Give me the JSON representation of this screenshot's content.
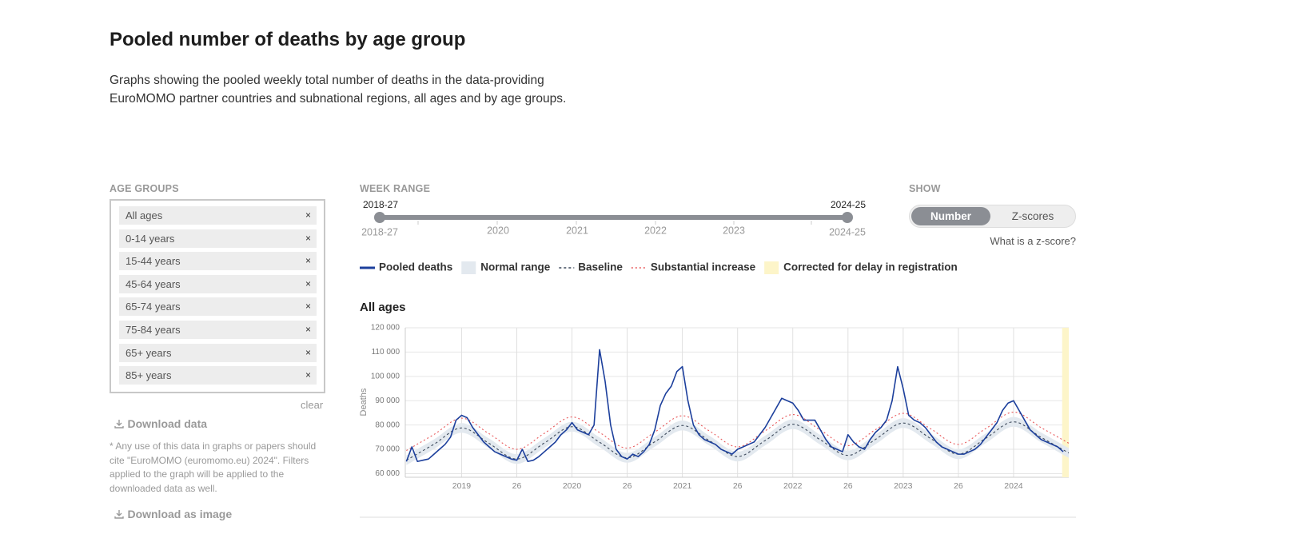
{
  "header": {
    "title": "Pooled number of deaths by age group",
    "description": "Graphs showing the pooled weekly total number of deaths in the data-providing EuroMOMO partner countries and subnational regions, all ages and by age groups."
  },
  "age_groups": {
    "label": "AGE GROUPS",
    "items": [
      "All ages",
      "0-14 years",
      "15-44 years",
      "45-64 years",
      "65-74 years",
      "75-84 years",
      "65+ years",
      "85+ years"
    ],
    "remove_icon": "×",
    "clear": "clear"
  },
  "downloads": {
    "data": "Download data",
    "note": "* Any use of this data in graphs or papers should cite \"EuroMOMO (euromomo.eu) 2024\". Filters applied to the graph will be applied to the downloaded data as well.",
    "image": "Download as image"
  },
  "week_range": {
    "label": "WEEK RANGE",
    "start": "2018-27",
    "end": "2024-25",
    "ticks": [
      "2020",
      "2021",
      "2022",
      "2023"
    ]
  },
  "show": {
    "label": "SHOW",
    "options": [
      "Number",
      "Z-scores"
    ],
    "help": "What is a z-score?"
  },
  "chart_data": {
    "type": "line",
    "title": "All ages",
    "ylabel": "Deaths",
    "grid": true,
    "xlim": [
      2018.49,
      2024.5
    ],
    "ylim": [
      58500,
      120000
    ],
    "xticks": [
      2019,
      {
        "value": 2019.5,
        "label": "26"
      },
      2020,
      {
        "value": 2020.5,
        "label": "26"
      },
      2021,
      {
        "value": 2021.5,
        "label": "26"
      },
      2022,
      {
        "value": 2022.5,
        "label": "26"
      },
      2023,
      {
        "value": 2023.5,
        "label": "26"
      },
      2024
    ],
    "yticks": [
      {
        "value": 60000,
        "label": "60 000"
      },
      {
        "value": 70000,
        "label": "70 000"
      },
      {
        "value": 80000,
        "label": "80 000"
      },
      {
        "value": 90000,
        "label": "90 000"
      },
      {
        "value": 100000,
        "label": "100 000"
      },
      {
        "value": 110000,
        "label": "110 000"
      },
      {
        "value": 120000,
        "label": "120 000"
      }
    ],
    "series": [
      {
        "name": "Pooled deaths",
        "color": "#1c3f9c",
        "style": "solid",
        "x": [
          2018.5,
          2018.55,
          2018.6,
          2018.65,
          2018.7,
          2018.75,
          2018.8,
          2018.85,
          2018.9,
          2018.95,
          2019,
          2019.05,
          2019.1,
          2019.15,
          2019.2,
          2019.25,
          2019.3,
          2019.35,
          2019.4,
          2019.45,
          2019.5,
          2019.55,
          2019.6,
          2019.65,
          2019.7,
          2019.75,
          2019.8,
          2019.85,
          2019.9,
          2019.95,
          2020,
          2020.05,
          2020.1,
          2020.15,
          2020.2,
          2020.25,
          2020.3,
          2020.35,
          2020.4,
          2020.45,
          2020.5,
          2020.55,
          2020.6,
          2020.65,
          2020.7,
          2020.75,
          2020.8,
          2020.85,
          2020.9,
          2020.95,
          2021,
          2021.05,
          2021.1,
          2021.15,
          2021.2,
          2021.25,
          2021.3,
          2021.35,
          2021.4,
          2021.45,
          2021.5,
          2021.55,
          2021.6,
          2021.65,
          2021.7,
          2021.75,
          2021.8,
          2021.85,
          2021.9,
          2021.95,
          2022,
          2022.05,
          2022.1,
          2022.15,
          2022.2,
          2022.25,
          2022.3,
          2022.35,
          2022.4,
          2022.45,
          2022.5,
          2022.55,
          2022.6,
          2022.65,
          2022.7,
          2022.75,
          2022.8,
          2022.85,
          2022.9,
          2022.95,
          2023,
          2023.05,
          2023.1,
          2023.15,
          2023.2,
          2023.25,
          2023.3,
          2023.35,
          2023.4,
          2023.45,
          2023.5,
          2023.55,
          2023.6,
          2023.65,
          2023.7,
          2023.75,
          2023.8,
          2023.85,
          2023.9,
          2023.95,
          2024,
          2024.05,
          2024.1,
          2024.15,
          2024.2,
          2024.25,
          2024.3,
          2024.35,
          2024.4,
          2024.45
        ],
        "values": [
          65000,
          71000,
          65000,
          65500,
          66000,
          68000,
          70000,
          72000,
          75000,
          82000,
          84000,
          83000,
          79000,
          76000,
          73000,
          71000,
          69000,
          68000,
          67000,
          66000,
          65500,
          70000,
          65000,
          65500,
          67000,
          69000,
          71000,
          73000,
          76000,
          78000,
          81000,
          78000,
          77000,
          76000,
          80000,
          111000,
          98000,
          80000,
          70000,
          67000,
          66000,
          68000,
          67000,
          69000,
          72000,
          78000,
          88000,
          93000,
          96000,
          102000,
          104000,
          90000,
          80000,
          76000,
          74000,
          73000,
          72000,
          70000,
          69000,
          68000,
          70000,
          71000,
          72000,
          73000,
          76000,
          79000,
          83000,
          87000,
          91000,
          90000,
          89000,
          86000,
          82000,
          82000,
          82000,
          78000,
          74000,
          71000,
          70000,
          69000,
          76000,
          73000,
          71000,
          70000,
          74000,
          77000,
          79000,
          82000,
          90000,
          104000,
          95000,
          84000,
          82000,
          81000,
          79000,
          76000,
          73000,
          71000,
          70000,
          69000,
          68000,
          68000,
          69000,
          70000,
          72000,
          75000,
          78000,
          81000,
          86000,
          89000,
          90000,
          86000,
          82000,
          78000,
          76000,
          74000,
          73000,
          72000,
          71000,
          69000
        ]
      },
      {
        "name": "Normal range",
        "color": "#e3e9ef",
        "style": "band",
        "x": [
          2018.5,
          2018.75,
          2019,
          2019.25,
          2019.5,
          2019.75,
          2020,
          2020.25,
          2020.5,
          2020.75,
          2021,
          2021.25,
          2021.5,
          2021.75,
          2022,
          2022.25,
          2022.5,
          2022.75,
          2023,
          2023.25,
          2023.5,
          2023.75,
          2024,
          2024.25,
          2024.5
        ],
        "lower": [
          63500,
          70100,
          76800,
          70400,
          64000,
          70600,
          77300,
          70900,
          64500,
          71100,
          77800,
          71400,
          65000,
          71600,
          78300,
          71900,
          65500,
          72100,
          78800,
          72400,
          66000,
          72600,
          79300,
          72900,
          66500
        ],
        "upper": [
          67500,
          74100,
          80800,
          74400,
          68000,
          74600,
          81300,
          74900,
          68500,
          75100,
          81800,
          75400,
          69000,
          75600,
          82300,
          75900,
          69500,
          76100,
          82800,
          76400,
          70000,
          76600,
          83300,
          76900,
          70500
        ]
      },
      {
        "name": "Baseline",
        "color": "#3d4a5c",
        "style": "dashed",
        "x": [
          2018.5,
          2018.75,
          2019,
          2019.25,
          2019.5,
          2019.75,
          2020,
          2020.25,
          2020.5,
          2020.75,
          2021,
          2021.25,
          2021.5,
          2021.75,
          2022,
          2022.25,
          2022.5,
          2022.75,
          2023,
          2023.25,
          2023.5,
          2023.75,
          2024,
          2024.25,
          2024.5
        ],
        "values": [
          65500,
          72100,
          78800,
          72400,
          66000,
          72600,
          79300,
          72900,
          66500,
          73100,
          79800,
          73400,
          67000,
          73600,
          80300,
          73900,
          67500,
          74100,
          80800,
          74400,
          68000,
          74600,
          81300,
          74900,
          68500
        ]
      },
      {
        "name": "Substantial increase",
        "color": "#e8585a",
        "style": "dotted",
        "x": [
          2018.5,
          2018.75,
          2019,
          2019.25,
          2019.5,
          2019.75,
          2020,
          2020.25,
          2020.5,
          2020.75,
          2021,
          2021.25,
          2021.5,
          2021.75,
          2022,
          2022.25,
          2022.5,
          2022.75,
          2023,
          2023.25,
          2023.5,
          2023.75,
          2024,
          2024.25,
          2024.5
        ],
        "values": [
          69500,
          76100,
          82800,
          76400,
          70000,
          76600,
          83300,
          76900,
          70500,
          77100,
          83800,
          77400,
          71000,
          77600,
          84300,
          77900,
          71500,
          78100,
          84800,
          78400,
          72000,
          78600,
          85300,
          78900,
          72500
        ]
      },
      {
        "name": "Corrected for delay in registration",
        "color": "#fdf5c9",
        "style": "shade",
        "xrange": [
          2024.44,
          2024.5
        ]
      }
    ]
  }
}
